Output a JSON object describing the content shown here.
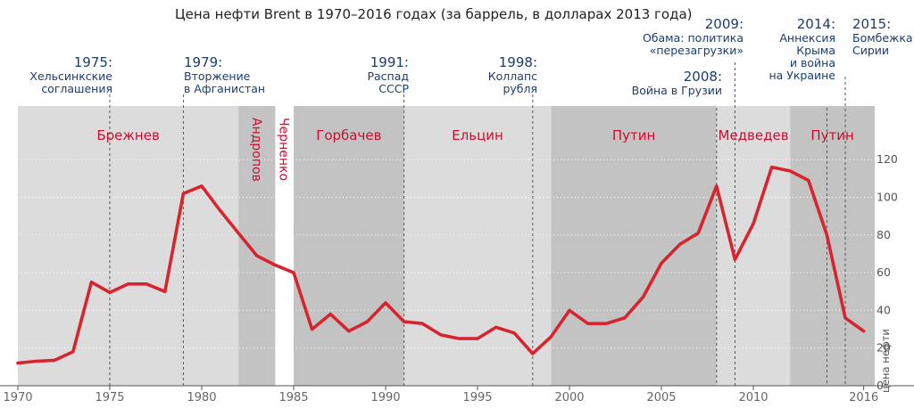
{
  "chart_data": {
    "type": "line",
    "title": "Цена нефти Brent в 1970–2016 годах (за баррель, в долларах 2013 года)",
    "ylabel": "цена нефти",
    "xlabel": "",
    "xlim": [
      1970,
      2016.6
    ],
    "ylim": [
      0,
      140
    ],
    "x_ticks": [
      "1970",
      "1975",
      "1980",
      "1985",
      "1990",
      "1995",
      "2000",
      "2005",
      "2010",
      "2016"
    ],
    "x_tick_values": [
      1970,
      1975,
      1980,
      1985,
      1990,
      1995,
      2000,
      2005,
      2010,
      2016
    ],
    "y_ticks": [
      "0",
      "20",
      "40",
      "60",
      "80",
      "100",
      "120"
    ],
    "y_tick_values": [
      0,
      20,
      40,
      60,
      80,
      100,
      120
    ],
    "color": "#d7252f",
    "series": [
      {
        "name": "Brent",
        "x": [
          1970,
          1971,
          1972,
          1973,
          1974,
          1975,
          1976,
          1977,
          1978,
          1979,
          1980,
          1981,
          1982,
          1983,
          1984,
          1985,
          1986,
          1987,
          1988,
          1989,
          1990,
          1991,
          1992,
          1993,
          1994,
          1995,
          1996,
          1997,
          1998,
          1999,
          2000,
          2001,
          2002,
          2003,
          2004,
          2005,
          2006,
          2007,
          2008,
          2009,
          2010,
          2011,
          2012,
          2013,
          2014,
          2015,
          2016
        ],
        "values": [
          12,
          13,
          13.5,
          18,
          55,
          49.5,
          54,
          54,
          50,
          102,
          106,
          93,
          81,
          69,
          64,
          60,
          30,
          38,
          29,
          34,
          44,
          34,
          33,
          27,
          25,
          25,
          31,
          28,
          17,
          26,
          40,
          33,
          33,
          36,
          47,
          65,
          75,
          81,
          106,
          67,
          86,
          116,
          114,
          109,
          80,
          36,
          29
        ]
      }
    ],
    "leaders": [
      {
        "name": "Брежнев",
        "start": 1970,
        "end": 1982,
        "shade": "light"
      },
      {
        "name": "Андропов",
        "start": 1982,
        "end": 1984,
        "shade": "dark"
      },
      {
        "name": "Черненко",
        "start": 1984,
        "end": 1985,
        "shade": "white"
      },
      {
        "name": "Горбачев",
        "start": 1985,
        "end": 1991,
        "shade": "dark"
      },
      {
        "name": "Ельцин",
        "start": 1991,
        "end": 1999,
        "shade": "light"
      },
      {
        "name": "Путин",
        "start": 1999,
        "end": 2008,
        "shade": "dark"
      },
      {
        "name": "Медведев",
        "start": 2008,
        "end": 2012,
        "shade": "light"
      },
      {
        "name": "Путин",
        "start": 2012,
        "end": 2016.6,
        "shade": "dark"
      }
    ],
    "events": [
      {
        "year_label": "1975:",
        "lines": [
          "Хельсинкские",
          "соглашения"
        ],
        "x": 1975
      },
      {
        "year_label": "1979:",
        "lines": [
          "Вторжение",
          "в Афганистан"
        ],
        "x": 1979
      },
      {
        "year_label": "1991:",
        "lines": [
          "Распад",
          "СССР"
        ],
        "x": 1991
      },
      {
        "year_label": "1998:",
        "lines": [
          "Коллапс",
          "рубля"
        ],
        "x": 1998
      },
      {
        "year_label": "2008:",
        "lines": [
          "Война в Грузии"
        ],
        "x": 2008
      },
      {
        "year_label": "2009:",
        "lines": [
          "Обама: политика",
          "«перезагрузки»"
        ],
        "x": 2009
      },
      {
        "year_label": "2014:",
        "lines": [
          "Аннексия",
          "Крыма",
          "и война",
          "на Украине"
        ],
        "x": 2014
      },
      {
        "year_label": "2015:",
        "lines": [
          "Бомбежка",
          "Сирии"
        ],
        "x": 2015
      }
    ]
  }
}
